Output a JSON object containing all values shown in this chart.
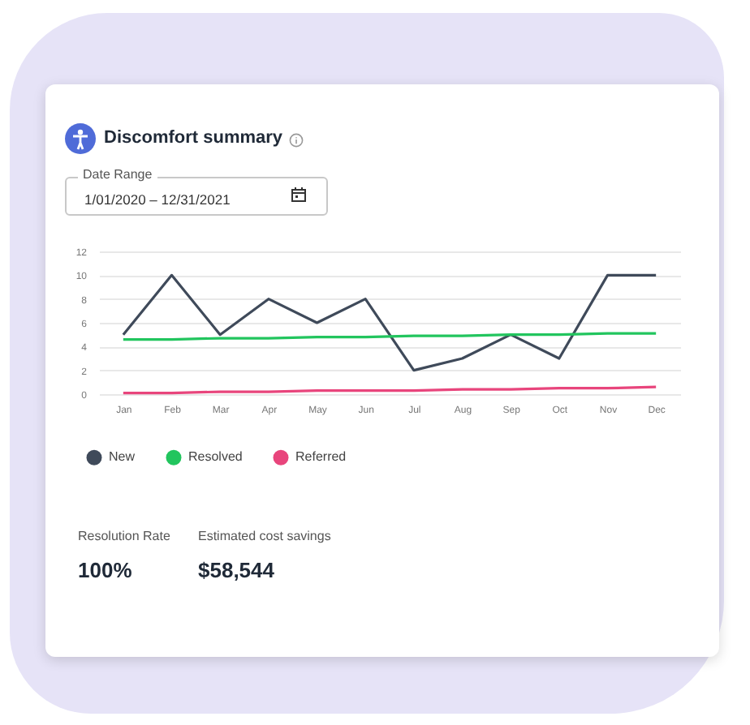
{
  "chart_data": {
    "type": "line",
    "title": "Discomfort summary",
    "categories": [
      "Jan",
      "Feb",
      "Mar",
      "Apr",
      "May",
      "Jun",
      "Jul",
      "Aug",
      "Sep",
      "Oct",
      "Nov",
      "Dec"
    ],
    "series": [
      {
        "name": "New",
        "color": "#3f4a5a",
        "values": [
          5,
          10,
          5,
          8,
          6,
          8,
          2,
          3,
          5,
          3,
          10,
          10
        ]
      },
      {
        "name": "Resolved",
        "color": "#22c55e",
        "values": [
          4.6,
          4.6,
          4.7,
          4.7,
          4.8,
          4.8,
          4.9,
          4.9,
          5,
          5,
          5.1,
          5.1
        ]
      },
      {
        "name": "Referred",
        "color": "#e8457c",
        "values": [
          0.1,
          0.1,
          0.2,
          0.2,
          0.3,
          0.3,
          0.3,
          0.4,
          0.4,
          0.5,
          0.5,
          0.6
        ]
      }
    ],
    "ylim": [
      0,
      12
    ],
    "yticks": [
      0,
      2,
      4,
      6,
      8,
      10,
      12
    ],
    "grid": "y",
    "legend": "bottom left",
    "annotations": [
      "Date Range",
      "1/01/2020 – 12/31/2021",
      "Resolution Rate",
      "100%",
      "Estimated cost savings",
      "$58,544"
    ]
  }
}
